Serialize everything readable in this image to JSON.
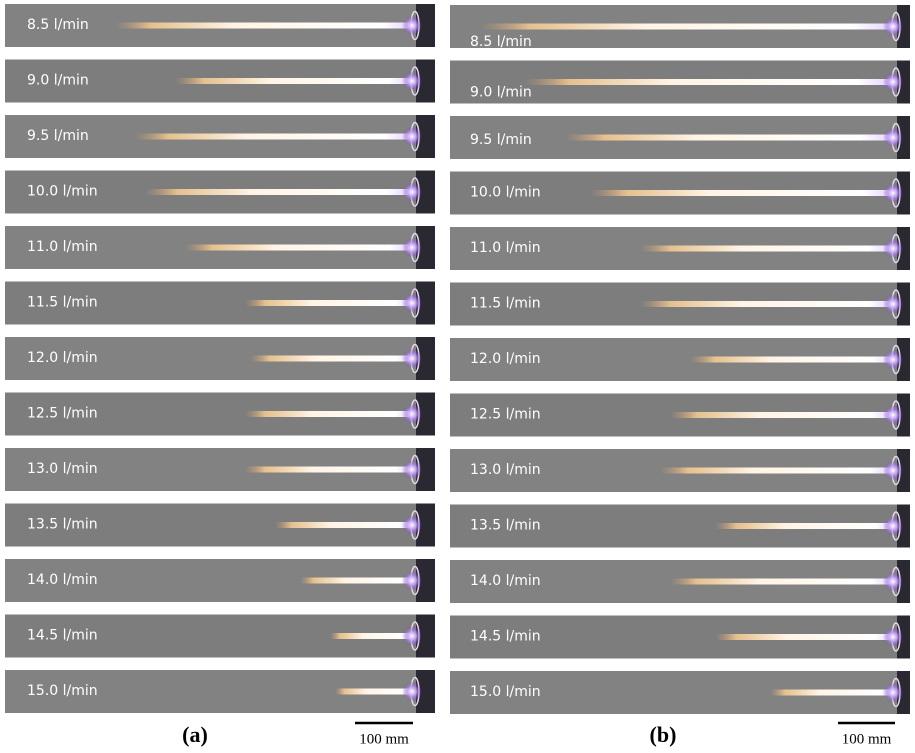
{
  "panels": [
    {
      "label": "(a)",
      "scale_bar": "100 mm",
      "rows": [
        "8.5 l/min",
        "9.0 l/min",
        "9.5 l/min",
        "10.0 l/min",
        "11.0 l/min",
        "11.5 l/min",
        "12.0 l/min",
        "12.5 l/min",
        "13.0 l/min",
        "13.5 l/min",
        "14.0 l/min",
        "14.5 l/min",
        "15.0 l/min"
      ]
    },
    {
      "label": "(b)",
      "scale_bar": "100 mm",
      "rows": [
        "8.5 l/min",
        "9.0 l/min",
        "9.5 l/min",
        "10.0 l/min",
        "11.0 l/min",
        "11.5 l/min",
        "12.0 l/min",
        "12.5 l/min",
        "13.0 l/min",
        "13.5 l/min",
        "14.0 l/min",
        "14.5 l/min",
        "15.0 l/min"
      ]
    }
  ]
}
